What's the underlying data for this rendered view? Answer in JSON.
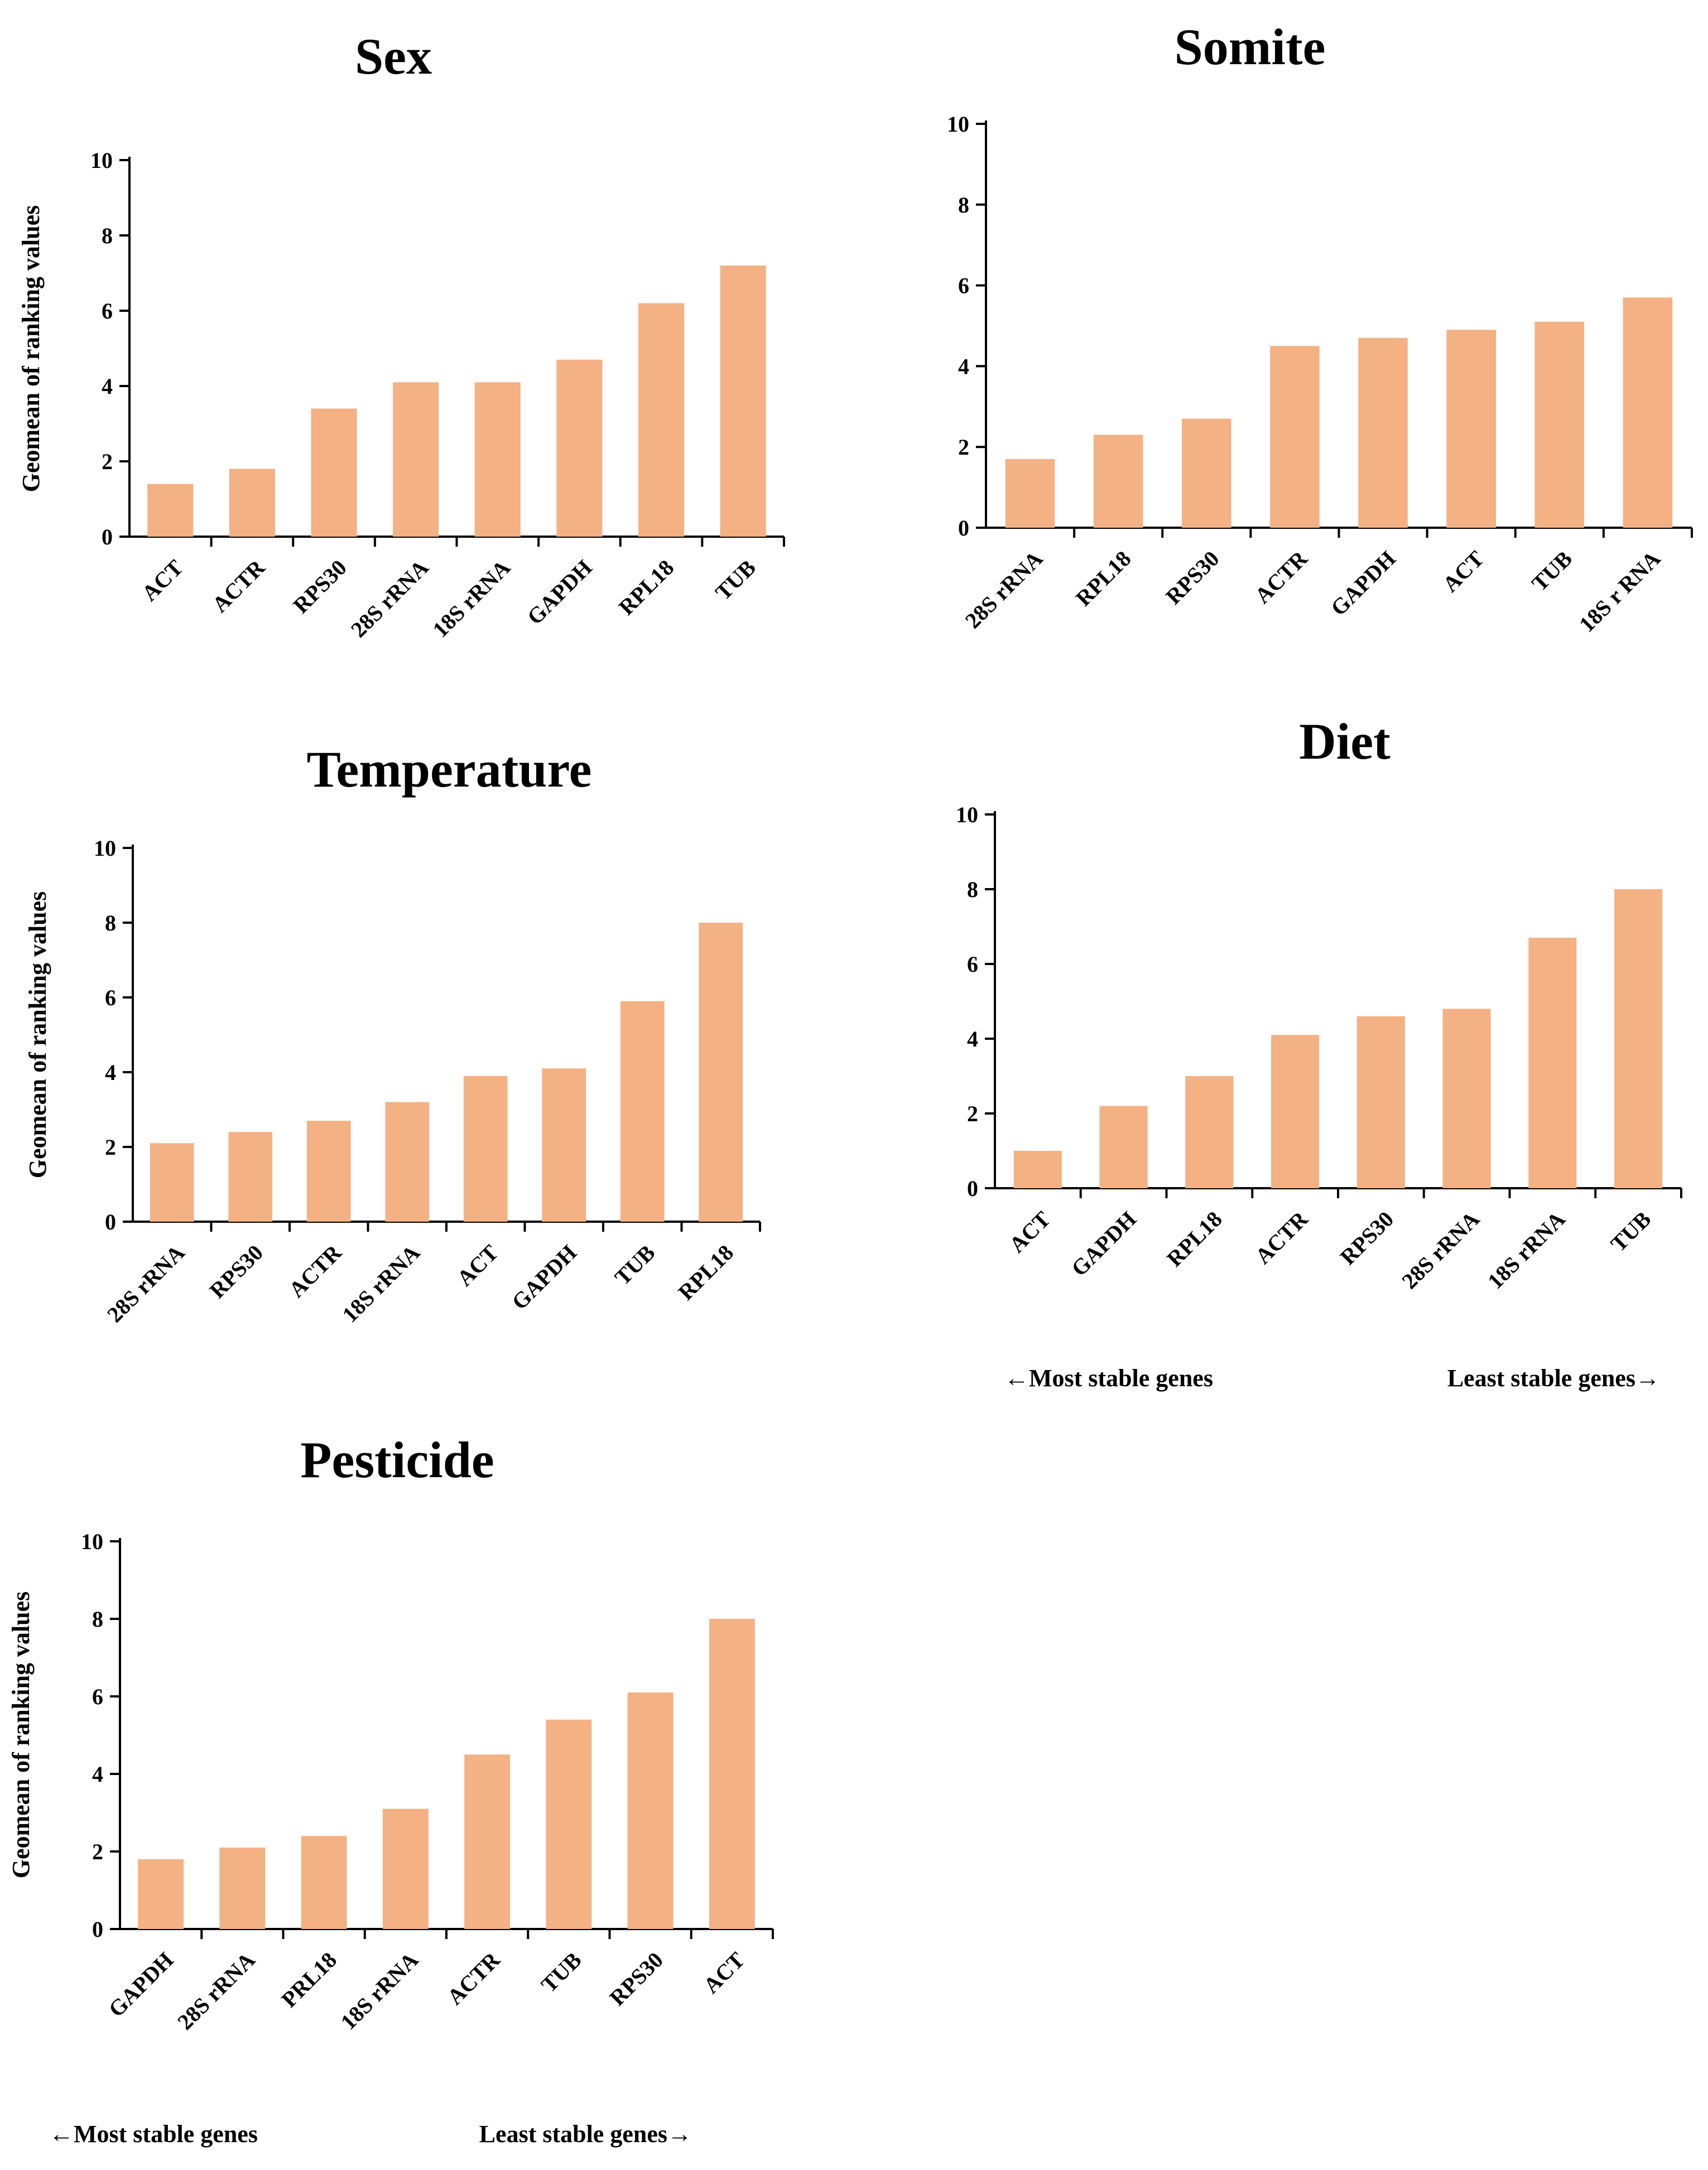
{
  "chart_data": [
    {
      "type": "bar",
      "title": "Sex",
      "ylabel": "Geomean of ranking values",
      "xlabel": "",
      "ylim": [
        0,
        10
      ],
      "yticks": [
        0,
        2,
        4,
        6,
        8,
        10
      ],
      "categories": [
        "ACT",
        "ACTR",
        "RPS30",
        "28S rRNA",
        "18S rRNA",
        "GAPDH",
        "RPL18",
        "TUB"
      ],
      "values": [
        1.4,
        1.8,
        3.4,
        4.1,
        4.1,
        4.7,
        6.2,
        7.2
      ],
      "notes": null
    },
    {
      "type": "bar",
      "title": "Somite",
      "ylabel": "",
      "xlabel": "",
      "ylim": [
        0,
        10
      ],
      "yticks": [
        0,
        2,
        4,
        6,
        8,
        10
      ],
      "categories": [
        "28S rRNA",
        "RPL18",
        "RPS30",
        "ACTR",
        "GAPDH",
        "ACT",
        "TUB",
        "18S r RNA"
      ],
      "values": [
        1.7,
        2.3,
        2.7,
        4.5,
        4.7,
        4.9,
        5.1,
        5.7
      ],
      "notes": null
    },
    {
      "type": "bar",
      "title": "Temperature",
      "ylabel": "Geomean of ranking values",
      "xlabel": "",
      "ylim": [
        0,
        10
      ],
      "yticks": [
        0,
        2,
        4,
        6,
        8,
        10
      ],
      "categories": [
        "28S rRNA",
        "RPS30",
        "ACTR",
        "18S rRNA",
        "ACT",
        "GAPDH",
        "TUB",
        "RPL18"
      ],
      "values": [
        2.1,
        2.4,
        2.7,
        3.2,
        3.9,
        4.1,
        5.9,
        8.0
      ],
      "notes": null
    },
    {
      "type": "bar",
      "title": "Diet",
      "ylabel": "",
      "xlabel": "",
      "ylim": [
        0,
        10
      ],
      "yticks": [
        0,
        2,
        4,
        6,
        8,
        10
      ],
      "categories": [
        "ACT",
        "GAPDH",
        "RPL18",
        "ACTR",
        "RPS30",
        "28S rRNA",
        "18S rRNA",
        "TUB"
      ],
      "values": [
        1.0,
        2.2,
        3.0,
        4.1,
        4.6,
        4.8,
        6.7,
        8.0
      ],
      "notes": [
        "←Most stable genes",
        "Least stable genes→"
      ]
    },
    {
      "type": "bar",
      "title": "Pesticide",
      "ylabel": "Geomean of ranking values",
      "xlabel": "",
      "ylim": [
        0,
        10
      ],
      "yticks": [
        0,
        2,
        4,
        6,
        8,
        10
      ],
      "categories": [
        "GAPDH",
        "28S rRNA",
        "PRL18",
        "18S rRNA",
        "ACTR",
        "TUB",
        "RPS30",
        "ACT"
      ],
      "values": [
        1.8,
        2.1,
        2.4,
        3.1,
        4.5,
        5.4,
        6.1,
        8.0
      ],
      "notes": [
        "←Most stable genes",
        "Least stable genes→"
      ]
    }
  ],
  "style": {
    "bar_color": "#F4B183",
    "axis_color": "#000000"
  }
}
